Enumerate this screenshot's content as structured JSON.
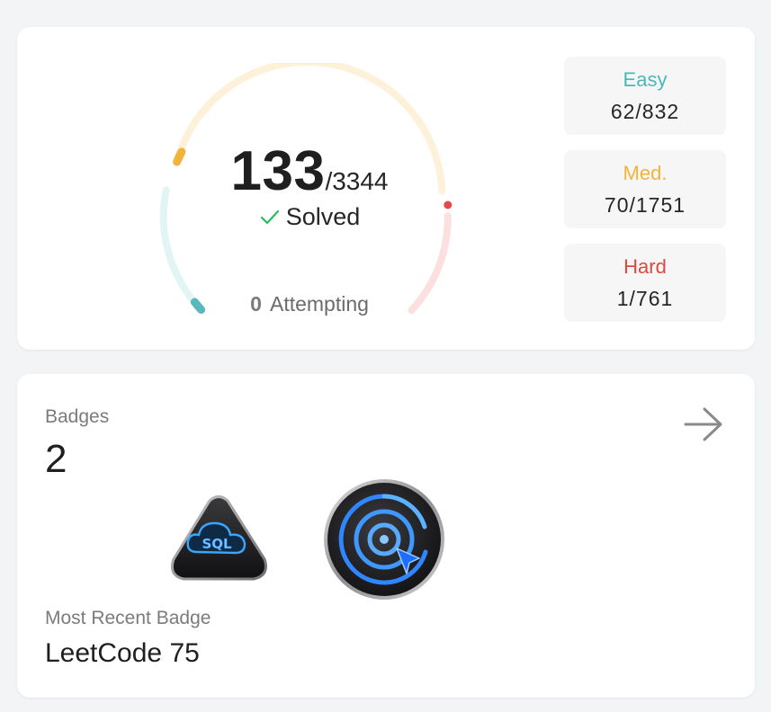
{
  "progress": {
    "solved_count": "133",
    "total_label": "/3344",
    "solved_label": "Solved",
    "attempting_count": "0",
    "attempting_label": "Attempting",
    "difficulties": {
      "easy": {
        "label": "Easy",
        "value": "62/832",
        "color": "#1cbaba",
        "solved": 62,
        "total": 832
      },
      "medium": {
        "label": "Med.",
        "value": "70/1751",
        "color": "#ffb700",
        "solved": 70,
        "total": 1751
      },
      "hard": {
        "label": "Hard",
        "value": "1/761",
        "color": "#f63737",
        "solved": 1,
        "total": 761
      }
    }
  },
  "badges": {
    "title": "Badges",
    "count": "2",
    "items": [
      {
        "name": "SQL badge",
        "icon": "sql-cloud-icon",
        "text": "SQL"
      },
      {
        "name": "LeetCode 75 badge",
        "icon": "target-cursor-icon"
      }
    ],
    "recent_title": "Most Recent Badge",
    "recent_name": "LeetCode 75"
  }
}
